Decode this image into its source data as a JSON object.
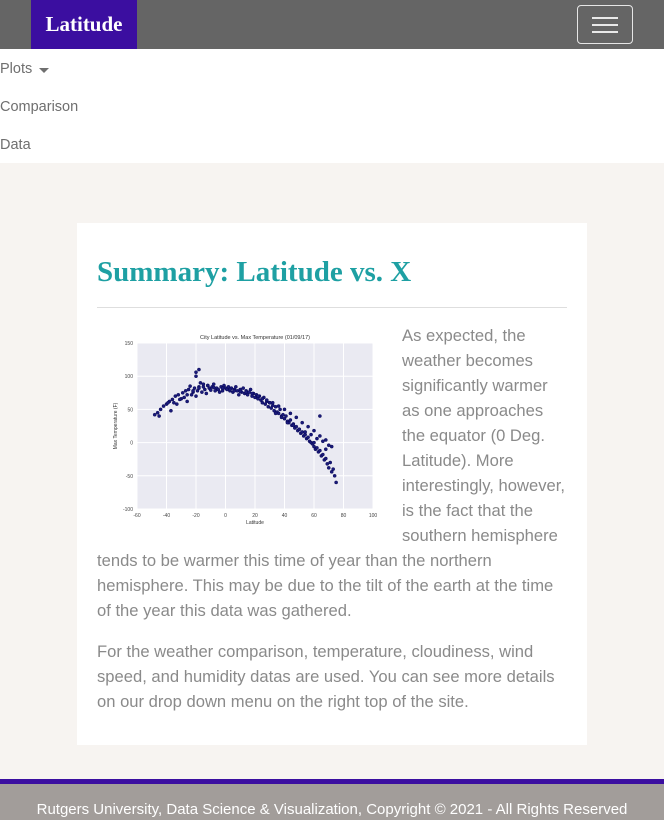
{
  "navbar": {
    "brand": "Latitude",
    "toggle_icon": "hamburger-icon"
  },
  "menu": {
    "items": [
      {
        "label": "Plots",
        "has_caret": true
      },
      {
        "label": "Comparison"
      },
      {
        "label": "Data"
      }
    ]
  },
  "summary": {
    "title": "Summary: Latitude vs. X",
    "paragraph1": "As expected, the weather becomes significantly warmer as one approaches the equator (0 Deg. Latitude). More interestingly, however, is the fact that the southern hemisphere tends to be warmer this time of year than the northern hemisphere. This may be due to the tilt of the earth at the time of the year this data was gathered.",
    "paragraph2": "For the weather comparison, temperature, cloudiness, wind speed, and humidity datas are used. You can see more details on our drop down menu on the right top of the site."
  },
  "footer": {
    "text": "Rutgers University, Data Science & Visualization, Copyright © 2021 - All Rights Reserved"
  },
  "colors": {
    "brand_bg": "#3b0ea0",
    "navbar_bg": "#656565",
    "title": "#1ea0a3",
    "plot_bg": "#eaeaf2",
    "point": "#1a1a7a"
  },
  "chart_data": {
    "type": "scatter",
    "title": "City Latitude vs. Max Temperature (01/09/17)",
    "xlabel": "Latitude",
    "ylabel": "Max Temperature (F)",
    "xlim": [
      -60,
      100
    ],
    "ylim": [
      -100,
      150
    ],
    "xticks": [
      -60,
      -40,
      -20,
      0,
      20,
      40,
      60,
      80,
      100
    ],
    "yticks": [
      -100,
      -50,
      0,
      50,
      100,
      150
    ],
    "grid": true,
    "series": [
      {
        "x": [
          -48,
          -46,
          -45,
          -42,
          -40,
          -38,
          -37,
          -36,
          -35,
          -34,
          -33,
          -32,
          -30,
          -29,
          -28,
          -27,
          -26,
          -25,
          -24,
          -23,
          -22,
          -21,
          -20,
          -20,
          -19,
          -18,
          -17,
          -16,
          -15,
          -14,
          -13,
          -12,
          -11,
          -10,
          -9,
          -8,
          -7,
          -6,
          -5,
          -4,
          -3,
          -2,
          -1,
          0,
          1,
          2,
          3,
          4,
          5,
          6,
          7,
          8,
          9,
          10,
          11,
          12,
          13,
          14,
          15,
          16,
          17,
          18,
          19,
          20,
          21,
          22,
          23,
          24,
          25,
          26,
          27,
          28,
          29,
          30,
          31,
          32,
          33,
          34,
          35,
          36,
          37,
          38,
          39,
          40,
          41,
          42,
          43,
          44,
          45,
          46,
          47,
          48,
          49,
          50,
          51,
          52,
          53,
          54,
          55,
          56,
          57,
          58,
          59,
          60,
          61,
          62,
          63,
          64,
          65,
          66,
          67,
          68,
          69,
          70,
          71,
          72,
          73,
          74,
          75,
          -44,
          -39,
          -31,
          -26,
          -22,
          -18,
          -15,
          -12,
          -8,
          -5,
          -2,
          3,
          6,
          10,
          14,
          18,
          22,
          25,
          28,
          32,
          36,
          40,
          44,
          48,
          52,
          56,
          60,
          64,
          68,
          72,
          34,
          42,
          50,
          58,
          66,
          38,
          46,
          54,
          62,
          70,
          30,
          60,
          68,
          64,
          -18,
          -20
        ],
        "y": [
          42,
          45,
          40,
          55,
          58,
          62,
          48,
          65,
          60,
          70,
          58,
          72,
          66,
          75,
          68,
          78,
          62,
          80,
          85,
          72,
          76,
          82,
          70,
          100,
          78,
          84,
          90,
          76,
          88,
          80,
          74,
          86,
          82,
          79,
          84,
          88,
          78,
          82,
          80,
          76,
          84,
          78,
          86,
          82,
          80,
          84,
          78,
          82,
          76,
          80,
          84,
          78,
          72,
          80,
          76,
          82,
          74,
          78,
          72,
          76,
          80,
          70,
          74,
          68,
          72,
          66,
          70,
          64,
          60,
          68,
          58,
          62,
          54,
          60,
          52,
          56,
          48,
          54,
          46,
          44,
          50,
          40,
          42,
          36,
          40,
          32,
          30,
          34,
          26,
          28,
          22,
          24,
          18,
          20,
          14,
          16,
          10,
          12,
          6,
          8,
          2,
          0,
          -2,
          -6,
          -10,
          -8,
          -14,
          -12,
          -20,
          -18,
          -26,
          -24,
          -32,
          -38,
          -30,
          -44,
          -40,
          -50,
          -60,
          50,
          60,
          65,
          72,
          78,
          82,
          84,
          86,
          83,
          80,
          82,
          80,
          78,
          77,
          76,
          74,
          70,
          66,
          64,
          60,
          55,
          50,
          44,
          38,
          30,
          24,
          18,
          10,
          4,
          -6,
          44,
          30,
          20,
          12,
          2,
          38,
          26,
          16,
          6,
          -4,
          60,
          0,
          -10,
          40,
          110,
          106
        ]
      }
    ]
  }
}
